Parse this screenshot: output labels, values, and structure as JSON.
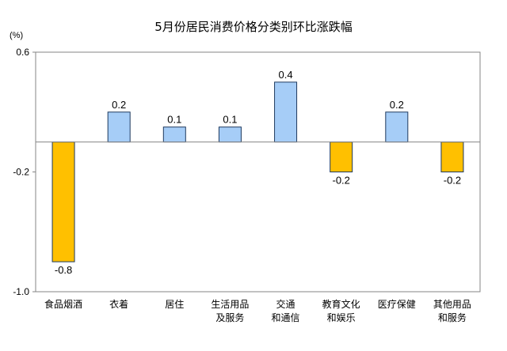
{
  "chart_data": {
    "type": "bar",
    "title": "5月份居民消费价格分类别环比涨跌幅",
    "unit_label": "(%)",
    "categories": [
      [
        "食品烟酒"
      ],
      [
        "衣着"
      ],
      [
        "居住"
      ],
      [
        "生活用品",
        "及服务"
      ],
      [
        "交通",
        "和通信"
      ],
      [
        "教育文化",
        "和娱乐"
      ],
      [
        "医疗保健"
      ],
      [
        "其他用品",
        "和服务"
      ]
    ],
    "values": [
      -0.8,
      0.2,
      0.1,
      0.1,
      0.4,
      -0.2,
      0.2,
      -0.2
    ],
    "value_labels": [
      "-0.8",
      "0.2",
      "0.1",
      "0.1",
      "0.4",
      "-0.2",
      "0.2",
      "-0.2"
    ],
    "ylim": [
      -1.0,
      0.6
    ],
    "yticks": [
      0.6,
      -0.2,
      -1.0
    ],
    "ytick_labels": [
      "0.6",
      "-0.2",
      "-1.0"
    ],
    "grid": false,
    "legend": "none",
    "colors": {
      "positive_fill": "#a6cdf7",
      "negative_fill": "#ffc000",
      "bar_stroke": "#1f3a5f",
      "axis": "#868686"
    }
  }
}
